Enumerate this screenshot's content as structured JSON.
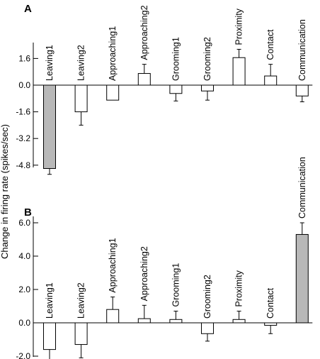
{
  "figure": {
    "ylabel": "Change in firing rate (spikes/sec)"
  },
  "colors": {
    "bar_fill": "#ffffff",
    "bar_highlight": "#b8b8b8",
    "stroke": "#000000"
  },
  "chart_data": [
    {
      "type": "bar",
      "panel": "A",
      "categories": [
        "Leaving1",
        "Leaving2",
        "Approaching1",
        "Approaching2",
        "Grooming1",
        "Grooming2",
        "Proximity",
        "Contact",
        "Communication"
      ],
      "values": [
        -5.0,
        -1.6,
        -0.9,
        0.7,
        -0.5,
        -0.35,
        1.65,
        0.55,
        -0.65
      ],
      "errors": [
        0.35,
        0.8,
        0.0,
        0.55,
        0.45,
        0.55,
        0.5,
        0.7,
        0.35
      ],
      "highlight": [
        true,
        false,
        false,
        false,
        false,
        false,
        false,
        false,
        false
      ],
      "ylim": [
        -5.6,
        2.4
      ],
      "yticks": [
        1.6,
        0.0,
        -1.6,
        -3.2,
        -4.8
      ],
      "ytick_labels": [
        "1.6",
        "0.0",
        "-1.6",
        "-3.2",
        "-4.8"
      ],
      "label_side": [
        -1,
        -1,
        -1,
        1,
        1,
        1,
        1,
        1,
        1
      ],
      "grid": false
    },
    {
      "type": "bar",
      "panel": "B",
      "categories": [
        "Leaving1",
        "Leaving2",
        "Approaching1",
        "Approaching2",
        "Grooming1",
        "Grooming2",
        "Proximity",
        "Contact",
        "Communication"
      ],
      "values": [
        -1.6,
        -1.3,
        0.8,
        0.25,
        0.2,
        -0.65,
        0.2,
        -0.15,
        5.3
      ],
      "errors": [
        1.05,
        0.8,
        0.75,
        0.8,
        0.5,
        0.45,
        0.5,
        0.5,
        0.7
      ],
      "highlight": [
        false,
        false,
        false,
        false,
        false,
        false,
        false,
        false,
        true
      ],
      "ylim": [
        -2.0,
        7.2
      ],
      "yticks": [
        6.0,
        4.0,
        2.0,
        0.0,
        -2.0
      ],
      "ytick_labels": [
        "6.0",
        "4.0",
        "2.0",
        "0.0",
        "-2.0"
      ],
      "label_side": [
        -1,
        -1,
        1,
        1,
        1,
        1,
        1,
        1,
        1
      ],
      "grid": false
    }
  ]
}
